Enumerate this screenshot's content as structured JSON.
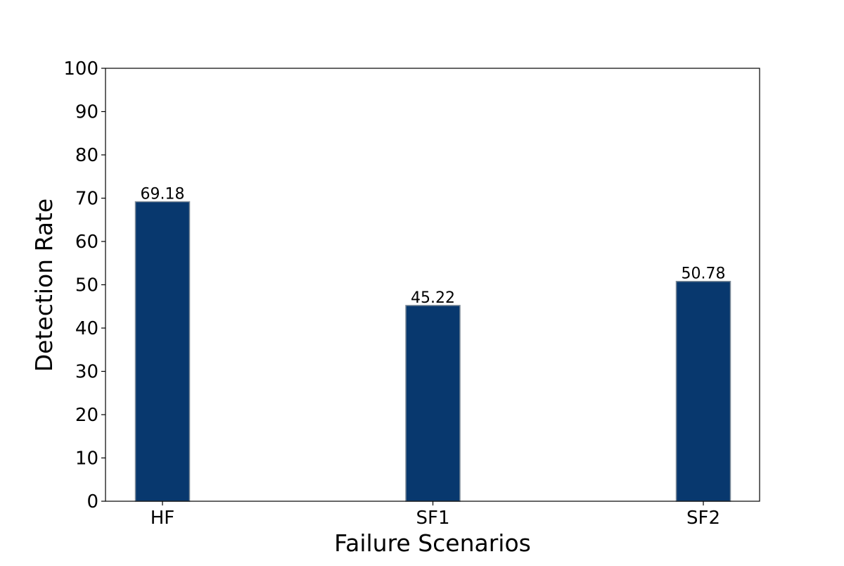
{
  "chart_data": {
    "type": "bar",
    "title": "",
    "xlabel": "Failure Scenarios",
    "ylabel": "Detection Rate",
    "categories": [
      "HF",
      "SF1",
      "SF2"
    ],
    "values": [
      69.18,
      45.22,
      50.78
    ],
    "data_labels": [
      "69.18",
      "45.22",
      "50.78"
    ],
    "ylim": [
      0,
      100
    ],
    "yticks": [
      0,
      10,
      20,
      30,
      40,
      50,
      60,
      70,
      80,
      90,
      100
    ],
    "grid": false,
    "legend": "none",
    "colors": {
      "bar_fill": "#08386e",
      "bar_edge": "#7f8c99",
      "axes": "#000000"
    }
  }
}
